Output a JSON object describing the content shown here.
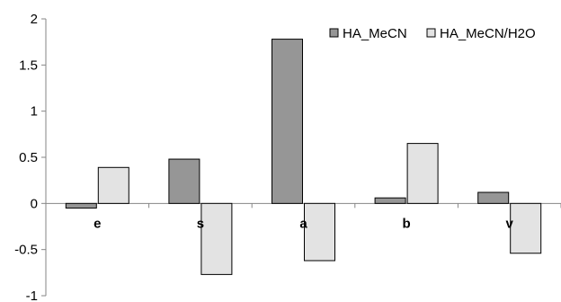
{
  "chart_data": {
    "type": "bar",
    "categories": [
      "e",
      "s",
      "a",
      "b",
      "v"
    ],
    "series": [
      {
        "name": "HA_MeCN",
        "values": [
          -0.05,
          0.48,
          1.78,
          0.06,
          0.12
        ],
        "color": "#969696"
      },
      {
        "name": "HA_MeCN/H2O",
        "values": [
          0.39,
          -0.77,
          -0.62,
          0.65,
          -0.54
        ],
        "color": "#e3e3e3"
      }
    ],
    "ylim": [
      -1,
      2
    ],
    "yticks": [
      "-1",
      "-0.5",
      "0",
      "0.5",
      "1",
      "1.5",
      "2"
    ],
    "grid": false,
    "legend_position": "top-right"
  }
}
